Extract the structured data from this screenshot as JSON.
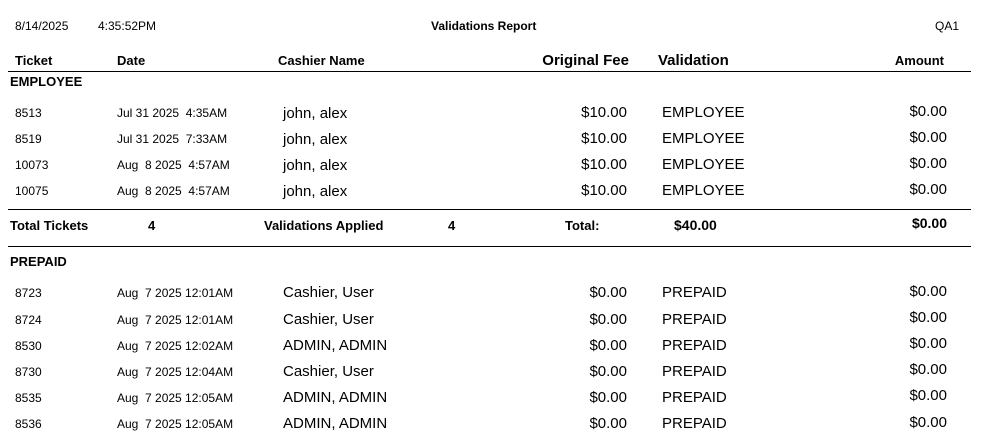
{
  "header": {
    "date": "8/14/2025",
    "time": "4:35:52PM",
    "title": "Validations Report",
    "site": "QA1"
  },
  "columns": {
    "ticket": "Ticket",
    "date": "Date",
    "cashier": "Cashier Name",
    "original_fee": "Original Fee",
    "validation": "Validation",
    "amount": "Amount"
  },
  "groups": [
    {
      "name": "EMPLOYEE",
      "rows": [
        {
          "ticket": "8513",
          "date": "Jul 31 2025  4:35AM",
          "cashier": "john, alex",
          "fee": "$10.00",
          "validation": "EMPLOYEE",
          "amount": "$0.00"
        },
        {
          "ticket": "8519",
          "date": "Jul 31 2025  7:33AM",
          "cashier": "john, alex",
          "fee": "$10.00",
          "validation": "EMPLOYEE",
          "amount": "$0.00"
        },
        {
          "ticket": "10073",
          "date": "Aug  8 2025  4:57AM",
          "cashier": "john, alex",
          "fee": "$10.00",
          "validation": "EMPLOYEE",
          "amount": "$0.00"
        },
        {
          "ticket": "10075",
          "date": "Aug  8 2025  4:57AM",
          "cashier": "john, alex",
          "fee": "$10.00",
          "validation": "EMPLOYEE",
          "amount": "$0.00"
        }
      ],
      "totals": {
        "tickets_label": "Total Tickets",
        "tickets": "4",
        "validations_label": "Validations Applied",
        "validations": "4",
        "total_label": "Total:",
        "total": "$40.00",
        "amount": "$0.00"
      }
    },
    {
      "name": "PREPAID",
      "rows": [
        {
          "ticket": "8723",
          "date": "Aug  7 2025 12:01AM",
          "cashier": "Cashier, User",
          "fee": "$0.00",
          "validation": "PREPAID",
          "amount": "$0.00"
        },
        {
          "ticket": "8724",
          "date": "Aug  7 2025 12:01AM",
          "cashier": "Cashier, User",
          "fee": "$0.00",
          "validation": "PREPAID",
          "amount": "$0.00"
        },
        {
          "ticket": "8530",
          "date": "Aug  7 2025 12:02AM",
          "cashier": "ADMIN, ADMIN",
          "fee": "$0.00",
          "validation": "PREPAID",
          "amount": "$0.00"
        },
        {
          "ticket": "8730",
          "date": "Aug  7 2025 12:04AM",
          "cashier": "Cashier, User",
          "fee": "$0.00",
          "validation": "PREPAID",
          "amount": "$0.00"
        },
        {
          "ticket": "8535",
          "date": "Aug  7 2025 12:05AM",
          "cashier": "ADMIN, ADMIN",
          "fee": "$0.00",
          "validation": "PREPAID",
          "amount": "$0.00"
        },
        {
          "ticket": "8536",
          "date": "Aug  7 2025 12:05AM",
          "cashier": "ADMIN, ADMIN",
          "fee": "$0.00",
          "validation": "PREPAID",
          "amount": "$0.00"
        }
      ]
    }
  ]
}
